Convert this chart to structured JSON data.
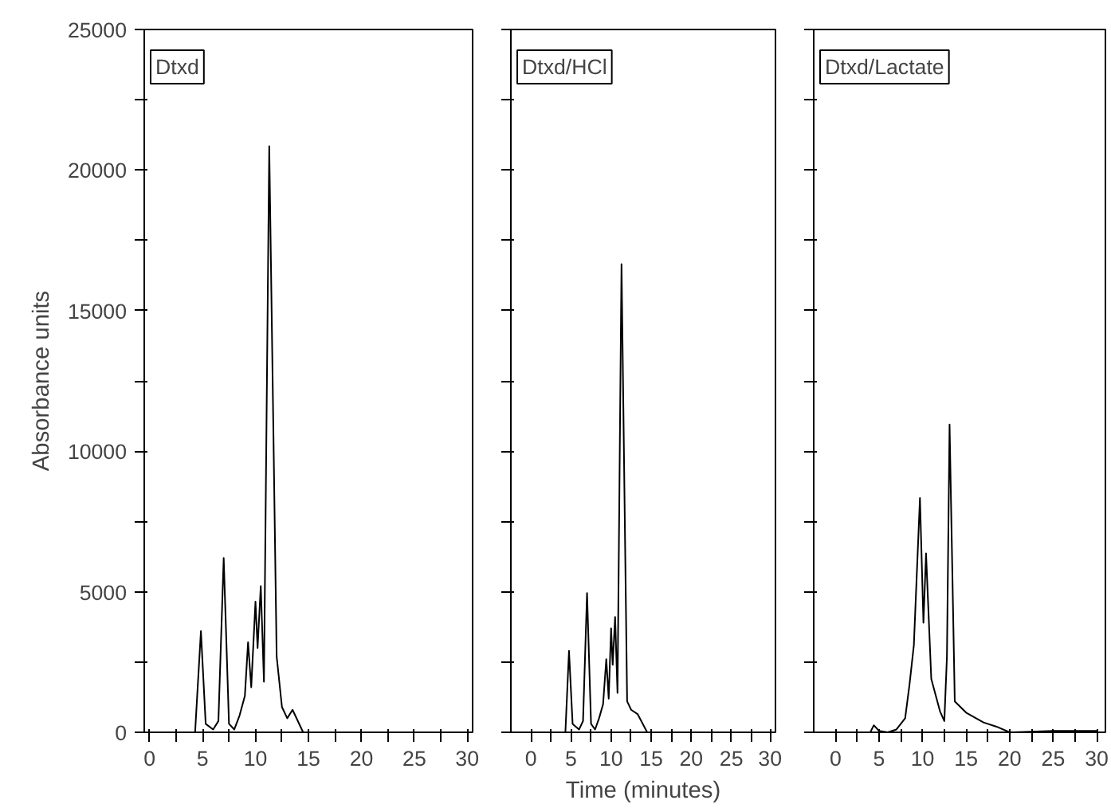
{
  "chart_data": [
    {
      "type": "line",
      "ylabel": "Absorbance units",
      "annotations": [
        "Dtxd"
      ],
      "xlim": [
        -0.5,
        30.5
      ],
      "ylim": [
        0,
        25000
      ],
      "xticks": [
        0,
        {
          "value": 2.5,
          "label": null
        },
        5,
        {
          "value": 7.5,
          "label": null
        },
        10,
        {
          "value": 12.5,
          "label": null
        },
        15,
        {
          "value": 17.5,
          "label": null
        },
        20,
        {
          "value": 22.5,
          "label": null
        },
        25,
        {
          "value": 27.5,
          "label": null
        },
        30
      ],
      "yticks": [
        0,
        {
          "value": 2500,
          "label": null
        },
        5000,
        {
          "value": 7500,
          "label": null
        },
        10000,
        {
          "value": 12500,
          "label": null
        },
        15000,
        {
          "value": 17500,
          "label": null
        },
        20000,
        {
          "value": 22500,
          "label": null
        },
        25000
      ],
      "series": [
        {
          "color": "#000000",
          "x": [
            0,
            4.3,
            4.85,
            5.3,
            6.0,
            6.5,
            7.0,
            7.5,
            8.0,
            8.5,
            9.0,
            9.3,
            9.6,
            10.0,
            10.2,
            10.5,
            10.8,
            11.3,
            12.0,
            12.5,
            13.0,
            13.5,
            14.5,
            30
          ],
          "values": [
            0,
            0,
            3600,
            300,
            100,
            400,
            6200,
            300,
            100,
            600,
            1300,
            3200,
            1600,
            4650,
            3000,
            5200,
            1800,
            20850,
            2700,
            900,
            500,
            800,
            0,
            0
          ]
        }
      ]
    },
    {
      "type": "line",
      "xlabel": "Time (minutes)",
      "annotations": [
        "Dtxd/HCl"
      ],
      "tick_labels": "x",
      "xlim": [
        -2.5,
        30.5
      ],
      "ylim": [
        0,
        25000
      ],
      "xticks": [
        0,
        {
          "value": 2.5,
          "label": null
        },
        5,
        {
          "value": 7.5,
          "label": null
        },
        10,
        {
          "value": 12.5,
          "label": null
        },
        15,
        {
          "value": 17.5,
          "label": null
        },
        20,
        {
          "value": 22.5,
          "label": null
        },
        25,
        {
          "value": 27.5,
          "label": null
        },
        30
      ],
      "yticks": [
        0,
        {
          "value": 2500,
          "label": null
        },
        5000,
        {
          "value": 7500,
          "label": null
        },
        10000,
        {
          "value": 12500,
          "label": null
        },
        15000,
        {
          "value": 17500,
          "label": null
        },
        20000,
        {
          "value": 22500,
          "label": null
        },
        25000
      ],
      "series": [
        {
          "color": "#000000",
          "x": [
            0,
            4.3,
            4.75,
            5.2,
            6.0,
            6.5,
            7.0,
            7.5,
            8.0,
            8.5,
            9.0,
            9.4,
            9.7,
            10.0,
            10.2,
            10.5,
            10.8,
            11.3,
            12.0,
            12.5,
            13.3,
            14.5,
            30
          ],
          "values": [
            0,
            0,
            2900,
            300,
            100,
            400,
            4950,
            300,
            100,
            500,
            1000,
            2600,
            1200,
            3700,
            2400,
            4100,
            1400,
            16650,
            1100,
            800,
            650,
            0,
            0
          ]
        }
      ]
    },
    {
      "type": "line",
      "annotations": [
        "Dtxd/Lactate"
      ],
      "tick_labels": "x",
      "xlim": [
        -2.5,
        31
      ],
      "ylim": [
        0,
        25000
      ],
      "xticks": [
        0,
        {
          "value": 2.5,
          "label": null
        },
        5,
        {
          "value": 7.5,
          "label": null
        },
        10,
        {
          "value": 12.5,
          "label": null
        },
        15,
        {
          "value": 17.5,
          "label": null
        },
        20,
        {
          "value": 22.5,
          "label": null
        },
        25,
        {
          "value": 27.5,
          "label": null
        },
        30
      ],
      "yticks": [
        0,
        {
          "value": 2500,
          "label": null
        },
        5000,
        {
          "value": 7500,
          "label": null
        },
        10000,
        {
          "value": 12500,
          "label": null
        },
        15000,
        {
          "value": 17500,
          "label": null
        },
        20000,
        {
          "value": 22500,
          "label": null
        },
        25000
      ],
      "series": [
        {
          "color": "#000000",
          "x": [
            0,
            4.0,
            4.4,
            5.0,
            6.0,
            7.0,
            8.0,
            8.5,
            9.0,
            9.7,
            10.1,
            10.4,
            11.0,
            12.0,
            12.5,
            12.8,
            13.1,
            13.7,
            15.0,
            17.0,
            18.5,
            20.0,
            25.0,
            30.0
          ],
          "values": [
            0,
            0,
            250,
            50,
            0,
            100,
            500,
            1700,
            3100,
            8330,
            3900,
            6360,
            1900,
            750,
            400,
            2700,
            10950,
            1100,
            700,
            350,
            200,
            0,
            50,
            50
          ]
        }
      ]
    }
  ]
}
